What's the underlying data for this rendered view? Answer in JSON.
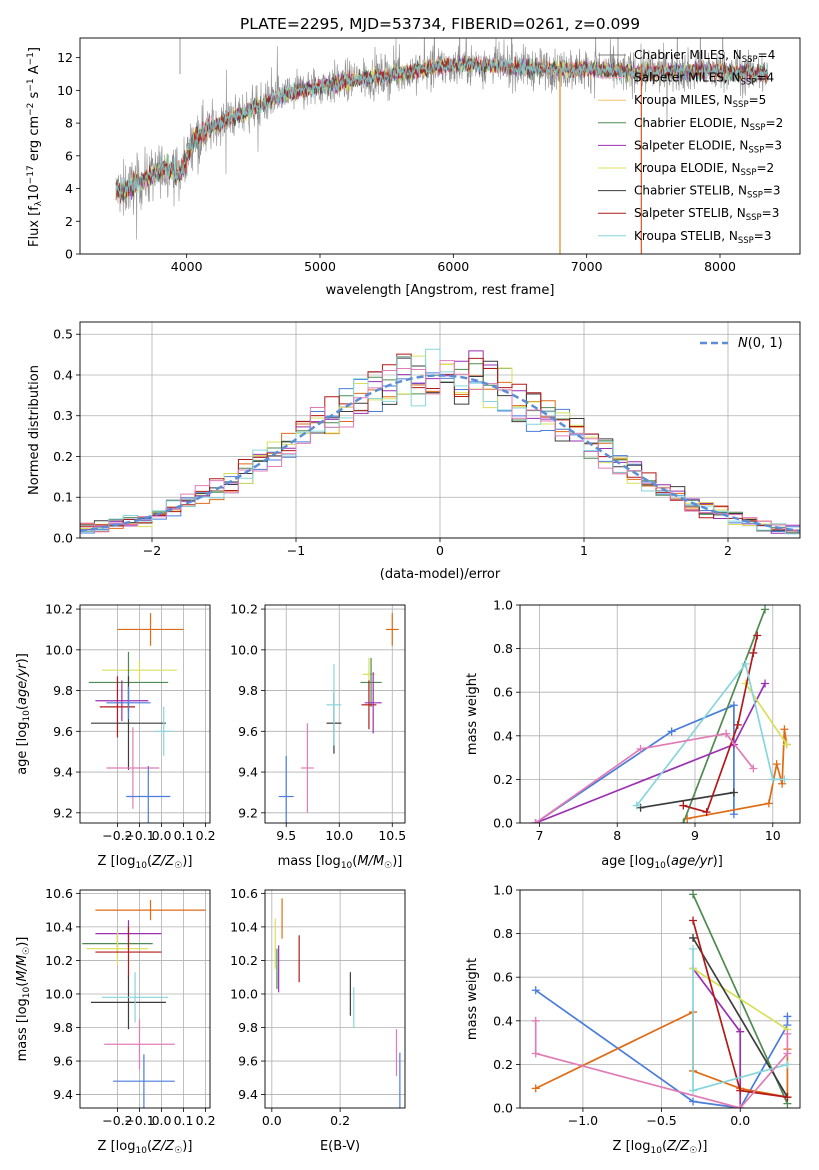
{
  "figure": {
    "title": "PLATE=2295, MJD=53734, FIBERID=0261, z=0.099"
  },
  "chart_data": [
    {
      "id": "spectrum",
      "type": "line",
      "xlabel": "wavelength [Angstrom, rest frame]",
      "ylabel": "Flux [f_λ 10^-17 erg cm^-2 s^-1 A^-1]",
      "xlim": [
        3200,
        8600
      ],
      "ylim": [
        0,
        13.2
      ],
      "xticks": [
        4000,
        5000,
        6000,
        7000,
        8000
      ],
      "yticks": [
        0,
        2,
        4,
        6,
        8,
        10,
        12
      ],
      "grid": false,
      "legend": "top-right",
      "continuum": {
        "x": [
          3470,
          3550,
          3650,
          3750,
          3850,
          3950,
          4050,
          4150,
          4300,
          4500,
          4700,
          4900,
          5100,
          5300,
          5500,
          5700,
          5900,
          6100,
          6300,
          6500,
          6700,
          6900,
          7100,
          7300,
          7500,
          7700,
          7900,
          8100,
          8300,
          8350
        ],
        "y": [
          3.8,
          4.0,
          4.4,
          4.9,
          5.3,
          4.8,
          7.0,
          7.6,
          8.2,
          8.9,
          9.6,
          10.1,
          10.4,
          10.7,
          10.9,
          11.2,
          11.5,
          11.6,
          11.5,
          11.4,
          11.3,
          11.3,
          11.3,
          11.1,
          11.1,
          11.2,
          11.2,
          11.1,
          11.0,
          11.0
        ]
      },
      "series": [
        {
          "name": "Chabrier MILES",
          "nssp": "4",
          "color": "#7f7f7f",
          "legend_kind": "data"
        },
        {
          "name": "Salpeter MILES",
          "nssp": "4",
          "color": "#f5a6c6"
        },
        {
          "name": "Kroupa MILES",
          "nssp": "5",
          "color": "#f2c16c"
        },
        {
          "name": "Chabrier ELODIE",
          "nssp": "2",
          "color": "#4e8a52"
        },
        {
          "name": "Salpeter ELODIE",
          "nssp": "3",
          "color": "#9c2fb2"
        },
        {
          "name": "Kroupa ELODIE",
          "nssp": "2",
          "color": "#d8e05a"
        },
        {
          "name": "Chabrier STELIB",
          "nssp": "3",
          "color": "#3c3c3c"
        },
        {
          "name": "Salpeter STELIB",
          "nssp": "3",
          "color": "#b21a1a"
        },
        {
          "name": "Kroupa STELIB",
          "nssp": "3",
          "color": "#86d6dc"
        }
      ],
      "vlines": [
        {
          "x": 6800,
          "color": "#d08b1f"
        },
        {
          "x": 7410,
          "color": "#d9531e"
        }
      ]
    },
    {
      "id": "residuals",
      "type": "bar",
      "xlabel": "(data-model)/error",
      "ylabel": "Normed distribution",
      "xlim": [
        -2.5,
        2.5
      ],
      "ylim": [
        0,
        0.53
      ],
      "xticks": [
        -2,
        -1,
        0,
        1,
        2
      ],
      "yticks": [
        0.0,
        0.1,
        0.2,
        0.3,
        0.4,
        0.5
      ],
      "grid": true,
      "bin_width": 0.1,
      "bin_start": -2.5,
      "reference_curve": {
        "name": "N(0,1)",
        "sigma": 1.0,
        "color": "#5b8ed6",
        "style": "dashed"
      },
      "legend": "top-right",
      "histogram_colors": [
        "#4a7ddc",
        "#e06b15",
        "#4e8a52",
        "#9c2fb2",
        "#d8e05a",
        "#3c3c3c",
        "#b21a1a",
        "#86d6dc",
        "#e17cb6"
      ]
    },
    {
      "id": "age_vs_z",
      "type": "scatter",
      "xlabel": "Z [log10(Z/Z☉)]",
      "ylabel": "age [log10(age/yr)]",
      "xlim": [
        -0.37,
        0.22
      ],
      "ylim": [
        9.15,
        10.22
      ],
      "xticks": [
        -0.2,
        -0.1,
        0.0,
        0.1,
        0.2
      ],
      "yticks": [
        9.2,
        9.4,
        9.6,
        9.8,
        10.0,
        10.2
      ],
      "grid": true,
      "points": [
        {
          "x": -0.05,
          "y": 10.1,
          "xerr": 0.15,
          "yerr": 0.08,
          "color": "#e06b15"
        },
        {
          "x": -0.1,
          "y": 9.9,
          "xerr": 0.17,
          "yerr": 0.05,
          "color": "#d8e05a"
        },
        {
          "x": -0.15,
          "y": 9.84,
          "xerr": 0.18,
          "yerr": 0.15,
          "color": "#4e8a52"
        },
        {
          "x": -0.18,
          "y": 9.75,
          "xerr": 0.12,
          "yerr": 0.1,
          "color": "#9c2fb2"
        },
        {
          "x": -0.2,
          "y": 9.72,
          "xerr": 0.08,
          "yerr": 0.15,
          "color": "#b21a1a"
        },
        {
          "x": -0.15,
          "y": 9.64,
          "xerr": 0.17,
          "yerr": 0.23,
          "color": "#3c3c3c"
        },
        {
          "x": -0.15,
          "y": 9.74,
          "xerr": 0.1,
          "yerr": 0.08,
          "color": "#4a7ddc"
        },
        {
          "x": -0.13,
          "y": 9.42,
          "xerr": 0.12,
          "yerr": 0.2,
          "color": "#e17cb6"
        },
        {
          "x": -0.06,
          "y": 9.28,
          "xerr": 0.1,
          "yerr": 0.15,
          "color": "#4a7ddc"
        },
        {
          "x": 0.01,
          "y": 9.6,
          "xerr": 0.04,
          "yerr": 0.12,
          "color": "#86d6dc"
        }
      ]
    },
    {
      "id": "age_vs_mass",
      "type": "scatter",
      "xlabel": "mass [log10(M/M☉)]",
      "ylabel": "",
      "xlim": [
        9.3,
        10.62
      ],
      "ylim": [
        9.15,
        10.22
      ],
      "xticks": [
        9.5,
        10.0,
        10.5
      ],
      "yticks": [
        9.2,
        9.4,
        9.6,
        9.8,
        10.0,
        10.2
      ],
      "grid": true,
      "points": [
        {
          "x": 10.5,
          "y": 10.1,
          "xerr": 0.06,
          "yerr": 0.08,
          "color": "#e06b15"
        },
        {
          "x": 10.28,
          "y": 9.88,
          "xerr": 0.06,
          "yerr": 0.08,
          "color": "#d8e05a"
        },
        {
          "x": 10.3,
          "y": 9.84,
          "xerr": 0.1,
          "yerr": 0.12,
          "color": "#4e8a52"
        },
        {
          "x": 10.28,
          "y": 9.73,
          "xerr": 0.07,
          "yerr": 0.12,
          "color": "#b21a1a"
        },
        {
          "x": 10.32,
          "y": 9.74,
          "xerr": 0.08,
          "yerr": 0.15,
          "color": "#9c2fb2"
        },
        {
          "x": 9.95,
          "y": 9.64,
          "xerr": 0.07,
          "yerr": 0.15,
          "color": "#3c3c3c"
        },
        {
          "x": 9.95,
          "y": 9.73,
          "xerr": 0.07,
          "yerr": 0.2,
          "color": "#86d6dc"
        },
        {
          "x": 9.7,
          "y": 9.42,
          "xerr": 0.06,
          "yerr": 0.22,
          "color": "#e17cb6"
        },
        {
          "x": 9.5,
          "y": 9.28,
          "xerr": 0.07,
          "yerr": 0.2,
          "color": "#4a7ddc"
        }
      ]
    },
    {
      "id": "weight_vs_age",
      "type": "line",
      "xlabel": "age [log10(age/yr)]",
      "ylabel": "mass weight",
      "xlim": [
        6.75,
        10.35
      ],
      "ylim": [
        0,
        1.0
      ],
      "xticks": [
        7,
        8,
        9,
        10
      ],
      "yticks": [
        0.0,
        0.2,
        0.4,
        0.6,
        0.8,
        1.0
      ],
      "grid": true,
      "series": [
        {
          "color": "#4a7ddc",
          "x": [
            6.95,
            8.7,
            9.5,
            9.5
          ],
          "y": [
            0.0,
            0.42,
            0.54,
            0.04
          ]
        },
        {
          "color": "#e06b15",
          "x": [
            8.9,
            9.95,
            10.05,
            10.12,
            10.15,
            10.18
          ],
          "y": [
            0.02,
            0.09,
            0.27,
            0.18,
            0.43,
            0.36
          ]
        },
        {
          "color": "#4e8a52",
          "x": [
            8.85,
            9.9
          ],
          "y": [
            0.0,
            0.98
          ]
        },
        {
          "color": "#9c2fb2",
          "x": [
            6.95,
            9.5,
            9.9
          ],
          "y": [
            0.0,
            0.36,
            0.64
          ]
        },
        {
          "color": "#d8e05a",
          "x": [
            9.65,
            10.18
          ],
          "y": [
            0.64,
            0.36
          ]
        },
        {
          "color": "#3c3c3c",
          "x": [
            8.3,
            9.5
          ],
          "y": [
            0.07,
            0.14
          ]
        },
        {
          "color": "#b21a1a",
          "x": [
            8.85,
            9.15,
            9.55,
            9.75,
            9.8
          ],
          "y": [
            0.08,
            0.05,
            0.45,
            0.78,
            0.86
          ]
        },
        {
          "color": "#86d6dc",
          "x": [
            8.25,
            9.65,
            10.0,
            10.15
          ],
          "y": [
            0.08,
            0.73,
            0.2,
            0.2
          ]
        },
        {
          "color": "#e17cb6",
          "x": [
            6.95,
            8.3,
            9.4,
            9.75
          ],
          "y": [
            0.0,
            0.34,
            0.41,
            0.25
          ]
        }
      ]
    },
    {
      "id": "mass_vs_z",
      "type": "scatter",
      "xlabel": "Z [log10(Z/Z☉)]",
      "ylabel": "mass [log10(M/M☉)]",
      "xlim": [
        -0.37,
        0.22
      ],
      "ylim": [
        9.32,
        10.62
      ],
      "xticks": [
        -0.2,
        -0.1,
        0.0,
        0.1,
        0.2
      ],
      "yticks": [
        9.4,
        9.6,
        9.8,
        10.0,
        10.2,
        10.4,
        10.6
      ],
      "grid": true,
      "points": [
        {
          "x": -0.05,
          "y": 10.5,
          "xerr": 0.25,
          "yerr": 0.06,
          "color": "#e06b15"
        },
        {
          "x": -0.15,
          "y": 10.36,
          "xerr": 0.15,
          "yerr": 0.08,
          "color": "#9c2fb2"
        },
        {
          "x": -0.2,
          "y": 10.3,
          "xerr": 0.16,
          "yerr": 0.06,
          "color": "#4e8a52"
        },
        {
          "x": -0.2,
          "y": 10.27,
          "xerr": 0.14,
          "yerr": 0.1,
          "color": "#d8e05a"
        },
        {
          "x": -0.15,
          "y": 10.25,
          "xerr": 0.15,
          "yerr": 0.15,
          "color": "#b21a1a"
        },
        {
          "x": -0.15,
          "y": 9.95,
          "xerr": 0.17,
          "yerr": 0.16,
          "color": "#3c3c3c"
        },
        {
          "x": -0.12,
          "y": 9.98,
          "xerr": 0.15,
          "yerr": 0.15,
          "color": "#86d6dc"
        },
        {
          "x": -0.1,
          "y": 9.7,
          "xerr": 0.16,
          "yerr": 0.15,
          "color": "#e17cb6"
        },
        {
          "x": -0.08,
          "y": 9.48,
          "xerr": 0.14,
          "yerr": 0.16,
          "color": "#4a7ddc"
        }
      ]
    },
    {
      "id": "mass_vs_ebv",
      "type": "scatter",
      "xlabel": "E(B-V)",
      "ylabel": "",
      "xlim": [
        -0.02,
        0.39
      ],
      "ylim": [
        9.32,
        10.62
      ],
      "xticks": [
        0.0,
        0.2
      ],
      "yticks": [
        9.4,
        9.6,
        9.8,
        10.0,
        10.2,
        10.4,
        10.6
      ],
      "grid": true,
      "points": [
        {
          "x": 0.03,
          "y": 10.45,
          "xerr": 0,
          "yerr": 0.12,
          "color": "#e06b15"
        },
        {
          "x": 0.02,
          "y": 10.15,
          "xerr": 0,
          "yerr": 0.14,
          "color": "#9c2fb2"
        },
        {
          "x": 0.01,
          "y": 10.3,
          "xerr": 0,
          "yerr": 0.15,
          "color": "#d8e05a"
        },
        {
          "x": 0.015,
          "y": 10.15,
          "xerr": 0,
          "yerr": 0.12,
          "color": "#4e8a52"
        },
        {
          "x": 0.08,
          "y": 10.21,
          "xerr": 0,
          "yerr": 0.14,
          "color": "#b21a1a"
        },
        {
          "x": 0.23,
          "y": 10.0,
          "xerr": 0,
          "yerr": 0.13,
          "color": "#3c3c3c"
        },
        {
          "x": 0.24,
          "y": 9.92,
          "xerr": 0,
          "yerr": 0.12,
          "color": "#86d6dc"
        },
        {
          "x": 0.365,
          "y": 9.65,
          "xerr": 0,
          "yerr": 0.14,
          "color": "#e17cb6"
        },
        {
          "x": 0.375,
          "y": 9.45,
          "xerr": 0,
          "yerr": 0.2,
          "color": "#4a7ddc"
        }
      ]
    },
    {
      "id": "weight_vs_z",
      "type": "line",
      "xlabel": "Z [log10(Z/Z☉)]",
      "ylabel": "mass weight",
      "xlim": [
        -1.4,
        0.38
      ],
      "ylim": [
        0,
        1.0
      ],
      "xticks": [
        -1.0,
        -0.5,
        0.0
      ],
      "yticks": [
        0.0,
        0.2,
        0.4,
        0.6,
        0.8,
        1.0
      ],
      "grid": true,
      "series": [
        {
          "color": "#4a7ddc",
          "x": [
            -1.3,
            -0.3,
            0.0,
            0.3,
            0.3
          ],
          "y": [
            0.54,
            0.03,
            0.0,
            0.38,
            0.42
          ]
        },
        {
          "color": "#e06b15",
          "x": [
            -1.3,
            -0.3,
            -0.3,
            0.0,
            0.3,
            0.3
          ],
          "y": [
            0.09,
            0.44,
            0.17,
            0.09,
            0.05,
            0.27
          ]
        },
        {
          "color": "#4e8a52",
          "x": [
            -0.3,
            0.3
          ],
          "y": [
            0.98,
            0.02
          ]
        },
        {
          "color": "#9c2fb2",
          "x": [
            -0.3,
            0.0,
            0.0
          ],
          "y": [
            0.64,
            0.35,
            0.0
          ]
        },
        {
          "color": "#d8e05a",
          "x": [
            -0.3,
            0.3
          ],
          "y": [
            0.64,
            0.36
          ]
        },
        {
          "color": "#3c3c3c",
          "x": [
            -0.3,
            0.3
          ],
          "y": [
            0.78,
            0.05
          ]
        },
        {
          "color": "#b21a1a",
          "x": [
            -0.3,
            0.0,
            0.3
          ],
          "y": [
            0.86,
            0.08,
            0.05
          ]
        },
        {
          "color": "#86d6dc",
          "x": [
            -0.3,
            -0.3,
            0.3
          ],
          "y": [
            0.73,
            0.08,
            0.2
          ]
        },
        {
          "color": "#e17cb6",
          "x": [
            -1.3,
            -1.3,
            0.0,
            0.3,
            0.3
          ],
          "y": [
            0.4,
            0.25,
            0.0,
            0.25,
            0.34
          ]
        }
      ]
    }
  ]
}
